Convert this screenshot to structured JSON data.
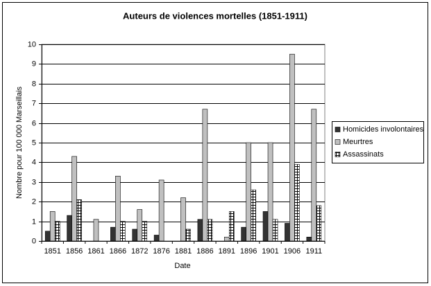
{
  "chart_data": {
    "type": "bar",
    "title": "Auteurs de violences mortelles (1851-1911)",
    "x_label": "Date",
    "y_label": "Nombre pour 100 000 Marseillais",
    "categories": [
      "1851",
      "1856",
      "1861",
      "1866",
      "1872",
      "1876",
      "1881",
      "1886",
      "1891",
      "1896",
      "1901",
      "1906",
      "1911"
    ],
    "series": [
      {
        "name": "Homicides involontaires",
        "color": "#333333",
        "values": [
          0.5,
          1.3,
          0,
          0.7,
          0.6,
          0.3,
          0,
          1.1,
          0,
          0.7,
          1.5,
          0.9,
          0.2
        ]
      },
      {
        "name": "Meurtres",
        "color": "#c0c0c0",
        "values": [
          1.5,
          4.3,
          1.1,
          3.3,
          1.6,
          3.1,
          2.2,
          6.7,
          0.2,
          5.0,
          5.0,
          9.5,
          6.7
        ]
      },
      {
        "name": "Assassinats",
        "color": "#000000",
        "pattern": "crosshatch",
        "values": [
          1.0,
          2.1,
          0,
          1.0,
          1.0,
          0,
          0.6,
          1.1,
          1.5,
          2.6,
          1.1,
          3.9,
          1.8
        ]
      }
    ],
    "ylim": [
      0,
      10
    ],
    "yticks": [
      0,
      1,
      2,
      3,
      4,
      5,
      6,
      7,
      8,
      9,
      10
    ],
    "grid": true,
    "legend": "right"
  }
}
